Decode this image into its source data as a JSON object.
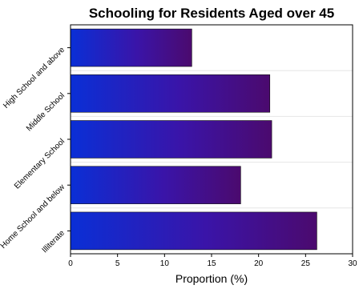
{
  "chart_data": {
    "type": "bar",
    "orientation": "horizontal",
    "title": "Schooling for Residents Aged over 45",
    "xlabel": "Proportion (%)",
    "ylabel": "",
    "categories": [
      "High School and above",
      "Middle School",
      "Elementary School",
      "Home School and below",
      "Illiterate"
    ],
    "values": [
      12.9,
      21.2,
      21.4,
      18.1,
      26.2
    ],
    "xlim": [
      0,
      30
    ],
    "xticks": [
      "0",
      "5",
      "10",
      "15",
      "20",
      "25",
      "30"
    ],
    "grid": true,
    "legend": "none",
    "colors": {
      "bar_start": "#0a2fd6",
      "bar_mid": "#3a14a8",
      "bar_end": "#4b0a6e",
      "grid": "#e6e6e6"
    }
  }
}
